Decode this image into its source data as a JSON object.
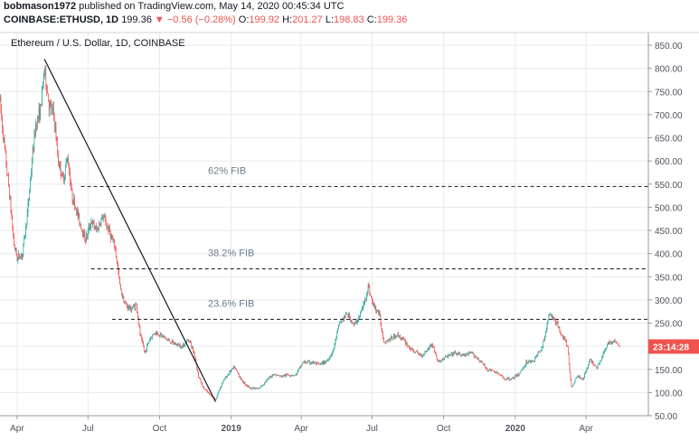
{
  "header": {
    "author": "bobmason1972",
    "published_text": "published on TradingView.com, May 14, 2020 00:45:34 UTC",
    "symbol": "COINBASE:ETHUSD, 1D",
    "last_price": "199.36",
    "change_arrow": "▼",
    "change": "−0.56 (−0.28%)",
    "o_label": "O:",
    "o_value": "199.92",
    "h_label": "H:",
    "h_value": "201.27",
    "l_label": "L:",
    "l_value": "198.83",
    "c_label": "C:",
    "c_value": "199.36"
  },
  "chart": {
    "instrument_label": "Ethereum / U.S. Dollar, 1D, COINBASE",
    "countdown": "23:14:28",
    "colors": {
      "up": "#26a69a",
      "down": "#ef5350",
      "grid": "#e8eaee",
      "axis_text": "#50535e",
      "fib_text": "#6a7c8c",
      "line": "#131722"
    }
  },
  "chart_data": {
    "type": "candlestick",
    "title": "Ethereum / U.S. Dollar, 1D, COINBASE",
    "y_ticks": [
      850,
      800,
      750,
      700,
      650,
      600,
      550,
      500,
      450,
      400,
      350,
      300,
      250,
      200,
      150,
      100,
      50
    ],
    "y_tick_labels": [
      "850.00",
      "800.00",
      "750.00",
      "700.00",
      "650.00",
      "600.00",
      "550.00",
      "500.00",
      "450.00",
      "400.00",
      "350.00",
      "300.00",
      "250.00",
      "200.00",
      "150.00",
      "100.00",
      "50.00"
    ],
    "ylim": [
      40,
      880
    ],
    "x_tick_labels": [
      "Apr",
      "Jul",
      "Oct",
      "2019",
      "Apr",
      "Jul",
      "Oct",
      "2020",
      "Apr"
    ],
    "x_tick_dates": [
      "2018-04-01",
      "2018-07-01",
      "2018-10-01",
      "2019-01-01",
      "2019-04-01",
      "2019-07-01",
      "2019-10-01",
      "2020-01-01",
      "2020-04-01"
    ],
    "x_range": [
      "2018-03-10",
      "2020-06-20"
    ],
    "grid": true,
    "price_path": [
      [
        "2018-03-10",
        730
      ],
      [
        "2018-03-15",
        640
      ],
      [
        "2018-03-22",
        530
      ],
      [
        "2018-03-28",
        420
      ],
      [
        "2018-04-01",
        390
      ],
      [
        "2018-04-08",
        400
      ],
      [
        "2018-04-15",
        500
      ],
      [
        "2018-04-20",
        600
      ],
      [
        "2018-04-25",
        680
      ],
      [
        "2018-05-01",
        710
      ],
      [
        "2018-05-06",
        800
      ],
      [
        "2018-05-12",
        720
      ],
      [
        "2018-05-18",
        700
      ],
      [
        "2018-05-24",
        600
      ],
      [
        "2018-05-30",
        560
      ],
      [
        "2018-06-05",
        610
      ],
      [
        "2018-06-10",
        530
      ],
      [
        "2018-06-15",
        500
      ],
      [
        "2018-06-22",
        460
      ],
      [
        "2018-06-28",
        430
      ],
      [
        "2018-07-05",
        470
      ],
      [
        "2018-07-12",
        450
      ],
      [
        "2018-07-20",
        480
      ],
      [
        "2018-07-28",
        450
      ],
      [
        "2018-08-05",
        410
      ],
      [
        "2018-08-12",
        320
      ],
      [
        "2018-08-18",
        290
      ],
      [
        "2018-08-25",
        280
      ],
      [
        "2018-09-01",
        290
      ],
      [
        "2018-09-06",
        225
      ],
      [
        "2018-09-12",
        185
      ],
      [
        "2018-09-18",
        215
      ],
      [
        "2018-09-25",
        230
      ],
      [
        "2018-10-02",
        225
      ],
      [
        "2018-10-10",
        215
      ],
      [
        "2018-10-20",
        205
      ],
      [
        "2018-10-30",
        200
      ],
      [
        "2018-11-08",
        215
      ],
      [
        "2018-11-15",
        180
      ],
      [
        "2018-11-20",
        135
      ],
      [
        "2018-11-26",
        110
      ],
      [
        "2018-12-05",
        95
      ],
      [
        "2018-12-12",
        85
      ],
      [
        "2018-12-20",
        120
      ],
      [
        "2018-12-28",
        140
      ],
      [
        "2019-01-05",
        155
      ],
      [
        "2019-01-15",
        125
      ],
      [
        "2019-01-25",
        110
      ],
      [
        "2019-02-05",
        108
      ],
      [
        "2019-02-15",
        125
      ],
      [
        "2019-02-24",
        140
      ],
      [
        "2019-03-05",
        135
      ],
      [
        "2019-03-15",
        138
      ],
      [
        "2019-03-25",
        138
      ],
      [
        "2019-04-03",
        165
      ],
      [
        "2019-04-15",
        165
      ],
      [
        "2019-04-25",
        160
      ],
      [
        "2019-05-05",
        170
      ],
      [
        "2019-05-12",
        190
      ],
      [
        "2019-05-20",
        250
      ],
      [
        "2019-05-30",
        270
      ],
      [
        "2019-06-08",
        245
      ],
      [
        "2019-06-15",
        265
      ],
      [
        "2019-06-22",
        300
      ],
      [
        "2019-06-26",
        330
      ],
      [
        "2019-07-02",
        290
      ],
      [
        "2019-07-10",
        270
      ],
      [
        "2019-07-16",
        210
      ],
      [
        "2019-07-24",
        215
      ],
      [
        "2019-08-03",
        225
      ],
      [
        "2019-08-12",
        210
      ],
      [
        "2019-08-22",
        190
      ],
      [
        "2019-09-03",
        180
      ],
      [
        "2019-09-16",
        205
      ],
      [
        "2019-09-24",
        165
      ],
      [
        "2019-10-02",
        175
      ],
      [
        "2019-10-15",
        185
      ],
      [
        "2019-10-27",
        180
      ],
      [
        "2019-11-06",
        185
      ],
      [
        "2019-11-16",
        170
      ],
      [
        "2019-11-26",
        150
      ],
      [
        "2019-12-06",
        145
      ],
      [
        "2019-12-18",
        130
      ],
      [
        "2019-12-28",
        130
      ],
      [
        "2020-01-06",
        140
      ],
      [
        "2020-01-15",
        165
      ],
      [
        "2020-01-25",
        170
      ],
      [
        "2020-02-05",
        200
      ],
      [
        "2020-02-14",
        270
      ],
      [
        "2020-02-21",
        255
      ],
      [
        "2020-03-01",
        225
      ],
      [
        "2020-03-08",
        200
      ],
      [
        "2020-03-13",
        110
      ],
      [
        "2020-03-20",
        135
      ],
      [
        "2020-03-28",
        130
      ],
      [
        "2020-04-06",
        170
      ],
      [
        "2020-04-15",
        155
      ],
      [
        "2020-04-25",
        190
      ],
      [
        "2020-05-01",
        210
      ],
      [
        "2020-05-08",
        210
      ],
      [
        "2020-05-14",
        199.36
      ]
    ],
    "trend_line": {
      "from": [
        "2018-05-06",
        820
      ],
      "to": [
        "2018-12-12",
        80
      ]
    },
    "fib_levels": [
      {
        "label": "62% FIB",
        "value": 545,
        "from": "2018-06-22"
      },
      {
        "label": "38.2% FIB",
        "value": 367,
        "from": "2018-07-05"
      },
      {
        "label": "23.6% FIB",
        "value": 258,
        "from": "2018-08-01"
      }
    ],
    "last_price": 199.36
  }
}
